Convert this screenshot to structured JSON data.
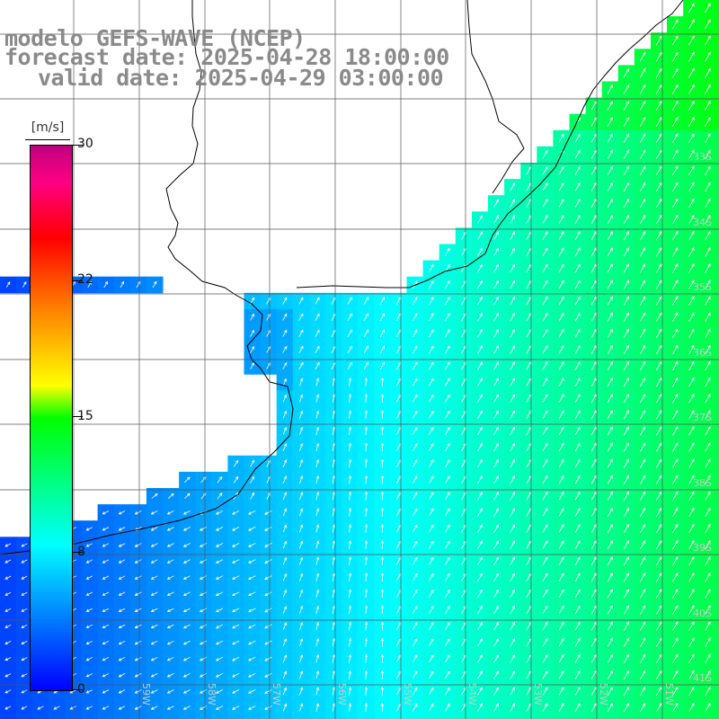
{
  "title": {
    "model": "modelo GEFS-WAVE (NCEP)",
    "forecast": "forecast date: 2025-04-28 18:00:00",
    "valid": "valid date: 2025-04-29 03:00:00"
  },
  "colorbar": {
    "unit": "[m/s]",
    "ticks": [
      "30",
      "22",
      "15",
      "8",
      "0"
    ],
    "tick_values": [
      30,
      22,
      15,
      8,
      0
    ],
    "colors": [
      "#0000ff",
      "#00ffff",
      "#00ff00",
      "#ffff00",
      "#ff8000",
      "#ff0000",
      "#c00080"
    ]
  },
  "map": {
    "lon_labels": [
      "59W",
      "58W",
      "57W",
      "56W",
      "55W",
      "54W",
      "53W",
      "52W",
      "51W"
    ],
    "lat_labels": [
      "33S",
      "34S",
      "35S",
      "36S",
      "37S",
      "38S",
      "39S",
      "40S",
      "41S"
    ],
    "vector_field": "wind",
    "land_color": "#ffffff"
  }
}
